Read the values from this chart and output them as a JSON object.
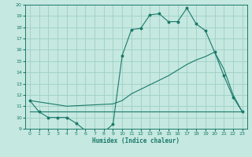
{
  "xlabel": "Humidex (Indice chaleur)",
  "bg_color": "#c5e8e0",
  "grid_color": "#9ecfc5",
  "line_color": "#1a7a6a",
  "xlim": [
    -0.5,
    23.5
  ],
  "ylim": [
    9,
    20
  ],
  "xticks": [
    0,
    1,
    2,
    3,
    4,
    5,
    6,
    7,
    8,
    9,
    10,
    11,
    12,
    13,
    14,
    15,
    16,
    17,
    18,
    19,
    20,
    21,
    22,
    23
  ],
  "yticks": [
    9,
    10,
    11,
    12,
    13,
    14,
    15,
    16,
    17,
    18,
    19,
    20
  ],
  "line1_x": [
    0,
    1,
    2,
    3,
    4,
    5,
    6,
    7,
    8,
    9,
    10,
    11,
    12,
    13,
    14,
    15,
    16,
    17,
    18,
    19,
    20,
    21,
    22,
    23
  ],
  "line1_y": [
    11.5,
    10.5,
    10.0,
    10.0,
    10.0,
    9.5,
    8.85,
    8.85,
    8.7,
    9.4,
    15.5,
    17.8,
    17.9,
    19.1,
    19.2,
    18.5,
    18.5,
    19.7,
    18.3,
    17.7,
    15.8,
    13.7,
    11.8,
    10.5
  ],
  "line2_x": [
    0,
    4,
    9,
    10,
    11,
    12,
    13,
    14,
    15,
    16,
    17,
    18,
    19,
    20,
    21,
    22,
    23
  ],
  "line2_y": [
    11.5,
    11.0,
    11.2,
    11.5,
    12.1,
    12.5,
    12.9,
    13.3,
    13.7,
    14.2,
    14.7,
    15.1,
    15.4,
    15.8,
    14.3,
    12.0,
    10.5
  ],
  "line3_x": [
    0,
    1,
    2,
    10,
    20,
    23
  ],
  "line3_y": [
    10.5,
    10.5,
    10.5,
    10.5,
    10.5,
    10.5
  ]
}
